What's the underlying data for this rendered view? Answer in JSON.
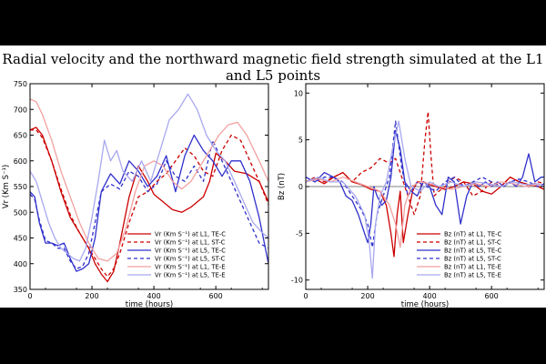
{
  "figure_title": "Radial velocity and the northward magnetic field strength simulated at the L1 and L5 points",
  "chart_data": [
    {
      "type": "line",
      "xlabel": "time (hours)",
      "ylabel": "Vr (Km S⁻¹)",
      "xlim": [
        0,
        770
      ],
      "ylim": [
        350,
        750
      ],
      "xticks": [
        0,
        200,
        400,
        600
      ],
      "yticks": [
        350,
        400,
        450,
        500,
        550,
        600,
        650,
        700,
        750
      ],
      "legend_position": "bottom-right",
      "series": [
        {
          "name": "Vr (Km S⁻¹) at L1, TE-C",
          "color": "#cc0000",
          "dash": "solid",
          "width": 1.3,
          "x": [
            0,
            20,
            40,
            70,
            100,
            130,
            160,
            190,
            210,
            230,
            250,
            270,
            290,
            320,
            350,
            380,
            400,
            430,
            460,
            490,
            520,
            560,
            580,
            600,
            630,
            660,
            700,
            740,
            770
          ],
          "y": [
            660,
            665,
            650,
            600,
            540,
            490,
            460,
            430,
            400,
            380,
            365,
            385,
            440,
            530,
            590,
            560,
            535,
            520,
            505,
            500,
            510,
            530,
            560,
            615,
            600,
            580,
            575,
            560,
            520
          ]
        },
        {
          "name": "Vr (Km S⁻¹) at L1, ST-C",
          "color": "#cc0000",
          "dash": "4,3",
          "width": 1.3,
          "x": [
            0,
            20,
            40,
            70,
            100,
            130,
            160,
            190,
            210,
            230,
            250,
            270,
            290,
            320,
            350,
            380,
            410,
            440,
            470,
            500,
            530,
            560,
            590,
            620,
            650,
            680,
            710,
            740,
            770
          ],
          "y": [
            660,
            660,
            645,
            600,
            545,
            495,
            460,
            430,
            410,
            390,
            375,
            390,
            420,
            480,
            530,
            540,
            560,
            575,
            600,
            625,
            610,
            580,
            570,
            620,
            650,
            640,
            600,
            560,
            515
          ]
        },
        {
          "name": "Vr (Km S⁻¹) at L5, TE-C",
          "color": "#3030cc",
          "dash": "solid",
          "width": 1.3,
          "x": [
            0,
            15,
            30,
            50,
            70,
            90,
            110,
            130,
            150,
            170,
            190,
            210,
            230,
            260,
            290,
            320,
            350,
            380,
            410,
            440,
            470,
            500,
            530,
            560,
            590,
            620,
            650,
            680,
            710,
            740,
            770
          ],
          "y": [
            540,
            530,
            480,
            440,
            440,
            435,
            440,
            410,
            385,
            390,
            400,
            450,
            540,
            575,
            555,
            600,
            580,
            550,
            570,
            610,
            540,
            610,
            650,
            620,
            600,
            570,
            600,
            600,
            560,
            490,
            400
          ]
        },
        {
          "name": "Vr (Km S⁻¹) at L5, ST-C",
          "color": "#3030cc",
          "dash": "4,3",
          "width": 1.3,
          "x": [
            0,
            15,
            30,
            50,
            70,
            90,
            110,
            130,
            150,
            170,
            190,
            210,
            230,
            260,
            290,
            320,
            350,
            380,
            410,
            440,
            470,
            500,
            530,
            560,
            590,
            620,
            650,
            680,
            710,
            740,
            770
          ],
          "y": [
            535,
            525,
            485,
            445,
            440,
            430,
            430,
            405,
            390,
            395,
            420,
            480,
            540,
            555,
            545,
            580,
            570,
            540,
            555,
            600,
            570,
            560,
            590,
            560,
            640,
            600,
            560,
            520,
            480,
            440,
            430
          ]
        },
        {
          "name": "Vr (Km S⁻¹) at L1, TE-E",
          "color": "#f2a0a0",
          "dash": "solid",
          "width": 1.3,
          "x": [
            0,
            20,
            40,
            70,
            100,
            130,
            160,
            190,
            220,
            250,
            280,
            310,
            340,
            370,
            400,
            430,
            460,
            490,
            520,
            550,
            580,
            610,
            640,
            670,
            700,
            740,
            770
          ],
          "y": [
            720,
            715,
            690,
            640,
            580,
            530,
            480,
            440,
            410,
            405,
            420,
            470,
            540,
            590,
            600,
            590,
            560,
            545,
            560,
            590,
            620,
            650,
            670,
            675,
            650,
            600,
            560
          ]
        },
        {
          "name": "Vr (Km S⁻¹) at L5, TE-E",
          "color": "#a8a8f0",
          "dash": "solid",
          "width": 1.3,
          "x": [
            0,
            20,
            40,
            60,
            80,
            100,
            120,
            140,
            160,
            180,
            200,
            220,
            240,
            260,
            280,
            300,
            330,
            360,
            390,
            420,
            450,
            480,
            510,
            540,
            570,
            600,
            630,
            660,
            690,
            720,
            750,
            770
          ],
          "y": [
            580,
            560,
            520,
            480,
            450,
            430,
            420,
            410,
            405,
            430,
            490,
            560,
            640,
            600,
            620,
            580,
            560,
            600,
            560,
            620,
            680,
            700,
            730,
            700,
            650,
            620,
            600,
            560,
            520,
            480,
            460,
            450
          ]
        }
      ]
    },
    {
      "type": "line",
      "xlabel": "time (hours)",
      "ylabel": "Bz (nT)",
      "xlim": [
        0,
        770
      ],
      "ylim": [
        -11,
        11
      ],
      "xticks": [
        0,
        200,
        400,
        600
      ],
      "yticks": [
        -10,
        -5,
        0,
        5,
        10
      ],
      "legend_position": "bottom-right",
      "series": [
        {
          "name": "Bz (nT) at L1, TE-C",
          "color": "#cc0000",
          "dash": "solid",
          "width": 1.3,
          "x": [
            0,
            30,
            60,
            90,
            120,
            150,
            180,
            210,
            240,
            260,
            275,
            285,
            295,
            305,
            315,
            330,
            345,
            360,
            380,
            400,
            420,
            450,
            480,
            510,
            540,
            570,
            600,
            630,
            660,
            690,
            720,
            750,
            770
          ],
          "y": [
            0.5,
            0.8,
            0.3,
            1.0,
            1.5,
            0.5,
            0.2,
            -0.3,
            -0.5,
            -2.0,
            -5.0,
            -7.5,
            -3.0,
            -0.5,
            -6.0,
            -3.0,
            -0.5,
            0.5,
            0.5,
            0.2,
            0.0,
            -0.3,
            0.0,
            0.5,
            0.3,
            -0.5,
            -0.8,
            0.0,
            1.0,
            0.5,
            0.2,
            0.0,
            -0.3
          ]
        },
        {
          "name": "Bz (nT) at L1, ST-C",
          "color": "#cc0000",
          "dash": "4,3",
          "width": 1.3,
          "x": [
            0,
            30,
            60,
            90,
            120,
            150,
            180,
            210,
            240,
            270,
            290,
            310,
            330,
            350,
            370,
            385,
            395,
            405,
            415,
            430,
            450,
            480,
            510,
            540,
            570,
            600,
            630,
            660,
            690,
            720,
            750,
            770
          ],
          "y": [
            0.5,
            1.0,
            0.5,
            1.0,
            1.5,
            0.5,
            1.5,
            2.0,
            3.0,
            2.5,
            3.0,
            1.0,
            -1.0,
            -3.0,
            -1.0,
            5.0,
            8.0,
            3.0,
            -1.0,
            -0.5,
            0.0,
            1.0,
            0.5,
            -1.0,
            -0.5,
            0.5,
            0.0,
            1.0,
            0.5,
            0.0,
            0.5,
            0.3
          ]
        },
        {
          "name": "Bz (nT) at L5, TE-C",
          "color": "#3030cc",
          "dash": "solid",
          "width": 1.3,
          "x": [
            0,
            30,
            60,
            90,
            110,
            130,
            150,
            170,
            190,
            200,
            210,
            220,
            230,
            245,
            260,
            275,
            290,
            305,
            320,
            340,
            360,
            380,
            400,
            420,
            440,
            460,
            480,
            500,
            520,
            540,
            560,
            580,
            600,
            620,
            640,
            660,
            680,
            700,
            720,
            740,
            760,
            770
          ],
          "y": [
            1.0,
            0.5,
            1.5,
            1.0,
            0.5,
            -1.0,
            -1.5,
            -3.0,
            -5.0,
            -6.0,
            -4.0,
            0.0,
            -1.0,
            -2.0,
            -1.5,
            1.0,
            6.0,
            4.0,
            0.5,
            -0.5,
            -1.0,
            0.5,
            0.0,
            -2.0,
            -3.0,
            1.0,
            0.5,
            -4.0,
            -1.0,
            0.5,
            0.0,
            0.5,
            0.0,
            0.5,
            0.0,
            0.5,
            0.0,
            1.0,
            3.5,
            0.5,
            1.0,
            1.0
          ]
        },
        {
          "name": "Bz (nT) at L5, ST-C",
          "color": "#3030cc",
          "dash": "4,3",
          "width": 1.3,
          "x": [
            0,
            30,
            60,
            90,
            120,
            150,
            180,
            200,
            215,
            230,
            250,
            270,
            290,
            310,
            330,
            360,
            390,
            420,
            450,
            480,
            510,
            540,
            570,
            600,
            630,
            660,
            690,
            720,
            750,
            770
          ],
          "y": [
            1.0,
            0.5,
            1.0,
            1.0,
            0.5,
            -1.0,
            -2.5,
            -4.0,
            -6.5,
            -3.0,
            -1.0,
            1.0,
            7.0,
            2.0,
            -1.0,
            0.5,
            0.0,
            -0.5,
            0.5,
            1.0,
            0.0,
            0.5,
            1.0,
            0.5,
            0.0,
            0.5,
            0.8,
            0.5,
            0.0,
            0.3
          ]
        },
        {
          "name": "Bz (nT) at L1, TE-E",
          "color": "#f2a0a0",
          "dash": "solid",
          "width": 1.3,
          "x": [
            0,
            40,
            80,
            120,
            160,
            200,
            240,
            270,
            290,
            305,
            320,
            340,
            370,
            400,
            430,
            470,
            510,
            550,
            590,
            630,
            670,
            710,
            750,
            770
          ],
          "y": [
            0.5,
            0.8,
            0.5,
            1.0,
            0.5,
            0.0,
            -0.5,
            -2.0,
            -4.0,
            -6.5,
            -2.0,
            0.0,
            0.5,
            0.3,
            0.0,
            -0.3,
            0.0,
            0.3,
            0.0,
            0.5,
            0.3,
            0.0,
            0.2,
            0.0
          ]
        },
        {
          "name": "Bz (nT) at L5, TE-E",
          "color": "#a8a8f0",
          "dash": "solid",
          "width": 1.3,
          "x": [
            0,
            40,
            80,
            120,
            160,
            190,
            205,
            215,
            225,
            240,
            260,
            280,
            300,
            320,
            340,
            370,
            400,
            430,
            470,
            510,
            550,
            590,
            630,
            670,
            710,
            750,
            770
          ],
          "y": [
            0.5,
            1.0,
            0.5,
            0.5,
            -1.0,
            -3.0,
            -6.0,
            -9.8,
            -4.0,
            -1.0,
            0.5,
            4.0,
            7.0,
            3.0,
            0.0,
            -0.5,
            0.5,
            0.0,
            0.5,
            0.0,
            0.5,
            0.3,
            0.0,
            0.5,
            0.2,
            0.3,
            0.0
          ]
        }
      ]
    }
  ]
}
